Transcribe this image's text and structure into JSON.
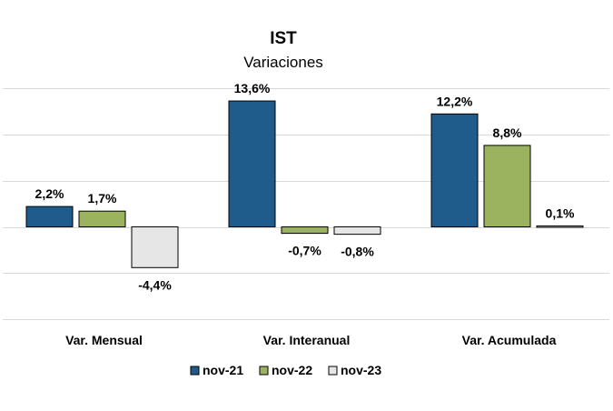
{
  "chart_data": {
    "type": "bar",
    "title": "IST",
    "subtitle": "Variaciones",
    "categories": [
      "Var. Mensual",
      "Var. Interanual",
      "Var. Acumulada"
    ],
    "series": [
      {
        "name": "nov-21",
        "color": "#1f5c8b",
        "values": [
          2.2,
          13.6,
          12.2
        ],
        "labels": [
          "2,2%",
          "13,6%",
          "12,2%"
        ]
      },
      {
        "name": "nov-22",
        "color": "#9bb35e",
        "values": [
          1.7,
          -0.7,
          8.8
        ],
        "labels": [
          "1,7%",
          "-0,7%",
          "8,8%"
        ]
      },
      {
        "name": "nov-23",
        "color": "#e6e6e6",
        "values": [
          -4.4,
          -0.8,
          0.1
        ],
        "labels": [
          "-4,4%",
          "-0,8%",
          "0,1%"
        ]
      }
    ],
    "ylim": [
      -10,
      16
    ],
    "grid": true,
    "legend_position": "bottom"
  }
}
